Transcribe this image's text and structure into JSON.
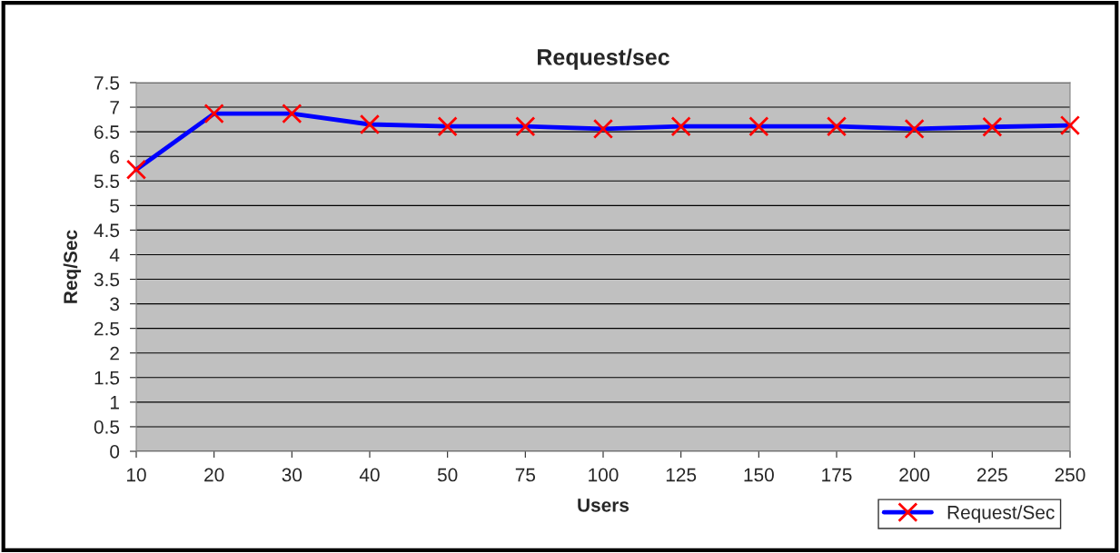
{
  "chart_data": {
    "type": "line",
    "title": "Request/sec",
    "xlabel": "Users",
    "ylabel": "Req/Sec",
    "categories": [
      "10",
      "20",
      "30",
      "40",
      "50",
      "75",
      "100",
      "125",
      "150",
      "175",
      "200",
      "225",
      "250"
    ],
    "series": [
      {
        "name": "Request/Sec",
        "color": "#0000ff",
        "values": [
          5.73,
          6.87,
          6.87,
          6.65,
          6.61,
          6.61,
          6.56,
          6.61,
          6.61,
          6.61,
          6.56,
          6.6,
          6.63
        ]
      }
    ],
    "ylim": [
      0,
      7.5
    ],
    "yticks": [
      0,
      0.5,
      1,
      1.5,
      2,
      2.5,
      3,
      3.5,
      4,
      4.5,
      5,
      5.5,
      6,
      6.5,
      7,
      7.5
    ],
    "grid": "y",
    "legend": "bottom right",
    "marker": "cross",
    "line_style": "solid"
  }
}
